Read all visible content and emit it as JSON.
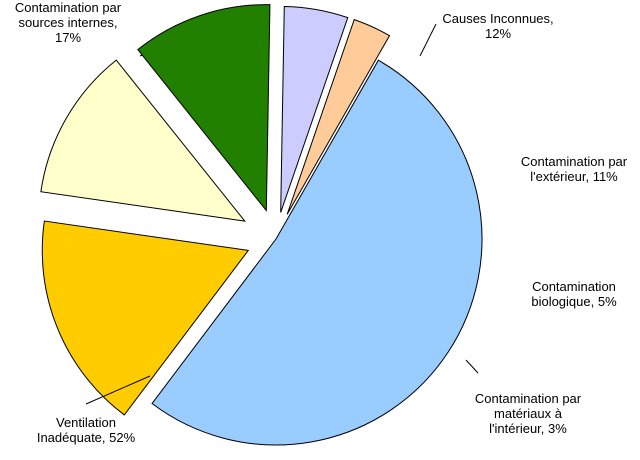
{
  "chart_data": {
    "type": "pie",
    "exploded": true,
    "legend": "none",
    "start_angle_deg": 217,
    "direction": "clockwise",
    "slices": [
      {
        "label": "Contamination par sources internes, 17%",
        "label_lines": [
          "Contamination par",
          "sources internes,",
          "17%"
        ],
        "value": 17,
        "color": "#ffcc00"
      },
      {
        "label": "Causes Inconnues, 12%",
        "label_lines": [
          "Causes Inconnues,",
          "12%"
        ],
        "value": 12,
        "color": "#ffffcc"
      },
      {
        "label": "Contamination par l'extérieur, 11%",
        "label_lines": [
          "Contamination par",
          "l'extérieur, 11%"
        ],
        "value": 11,
        "color": "#228000"
      },
      {
        "label": "Contamination biologique, 5%",
        "label_lines": [
          "Contamination",
          "biologique, 5%"
        ],
        "value": 5,
        "color": "#ccccff"
      },
      {
        "label": "Contamination par matériaux à l'intérieur, 3%",
        "label_lines": [
          "Contamination par",
          "matériaux à",
          "l'intérieur, 3%"
        ],
        "value": 3,
        "color": "#ffcc99"
      },
      {
        "label": "Ventilation Inadéquate, 52%",
        "label_lines": [
          "Ventilation",
          "Inadéquate, 52%"
        ],
        "value": 52,
        "color": "#99ccff"
      }
    ]
  }
}
